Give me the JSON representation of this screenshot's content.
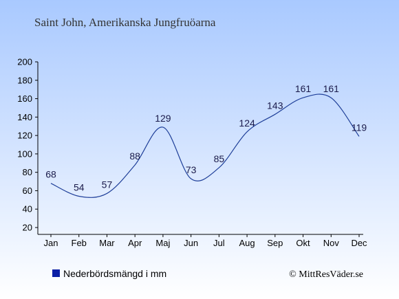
{
  "colors": {
    "background_top": "#a9c9ff",
    "background_bottom": "#ffffff",
    "line": "#1f3f99",
    "legend_marker": "#0b1fa6",
    "axis": "#000000"
  },
  "chart_data": {
    "type": "line",
    "title": "Saint John, Amerikanska Jungfruöarna",
    "categories": [
      "Jan",
      "Feb",
      "Mar",
      "Apr",
      "Maj",
      "Jun",
      "Jul",
      "Aug",
      "Sep",
      "Okt",
      "Nov",
      "Dec"
    ],
    "series": [
      {
        "name": "Nederbördsmängd i mm",
        "values": [
          68,
          54,
          57,
          88,
          129,
          73,
          85,
          124,
          143,
          161,
          161,
          119
        ]
      }
    ],
    "data_labels": [
      "68",
      "54",
      "57",
      "88",
      "129",
      "73",
      "85",
      "124",
      "143",
      "161",
      "161",
      "119"
    ],
    "y_ticks": [
      "20",
      "40",
      "60",
      "80",
      "100",
      "120",
      "140",
      "160",
      "180",
      "200"
    ],
    "ylim": [
      20,
      200
    ],
    "grid": false,
    "legend_position": "bottom-left"
  },
  "credit": "© MittResVäder.se"
}
